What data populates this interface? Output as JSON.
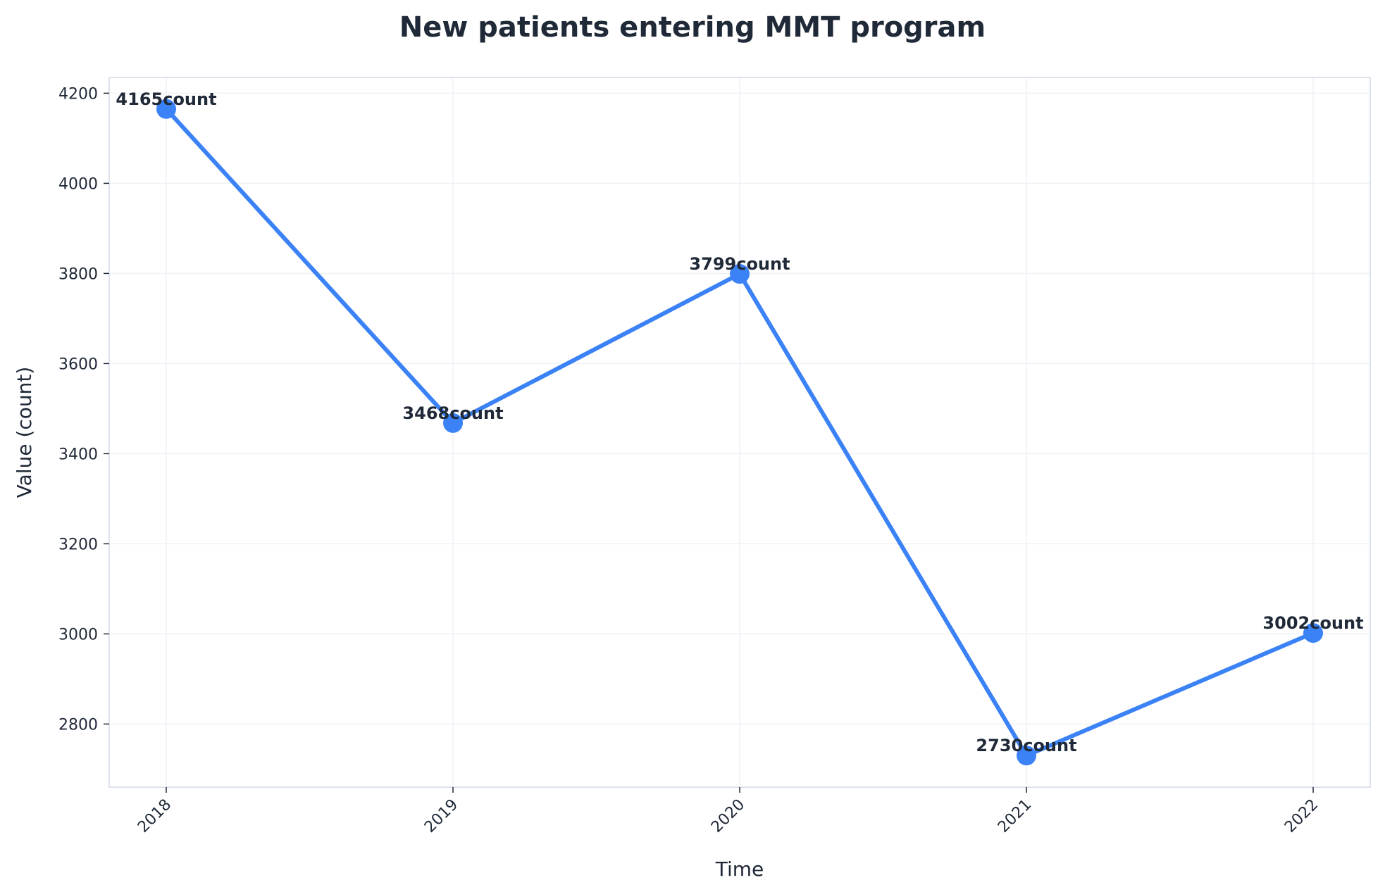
{
  "chart_data": {
    "type": "line",
    "title": "New patients entering MMT program",
    "xlabel": "Time",
    "ylabel": "Value (count)",
    "x": [
      "2018",
      "2019",
      "2020",
      "2021",
      "2022"
    ],
    "series": [
      {
        "values": [
          4165,
          3468,
          3799,
          2730,
          3002
        ],
        "color": "#3b82f6"
      }
    ],
    "data_labels": [
      "4165count",
      "3468count",
      "3799count",
      "2730count",
      "3002count"
    ],
    "yticks": [
      2800,
      3000,
      3200,
      3400,
      3600,
      3800,
      4000,
      4200
    ],
    "ylim": [
      2660,
      4235
    ],
    "grid": true,
    "legend": "none"
  },
  "colors": {
    "text": "#1f2937",
    "grid": "#eef1f6",
    "frame": "#dde3ee"
  }
}
